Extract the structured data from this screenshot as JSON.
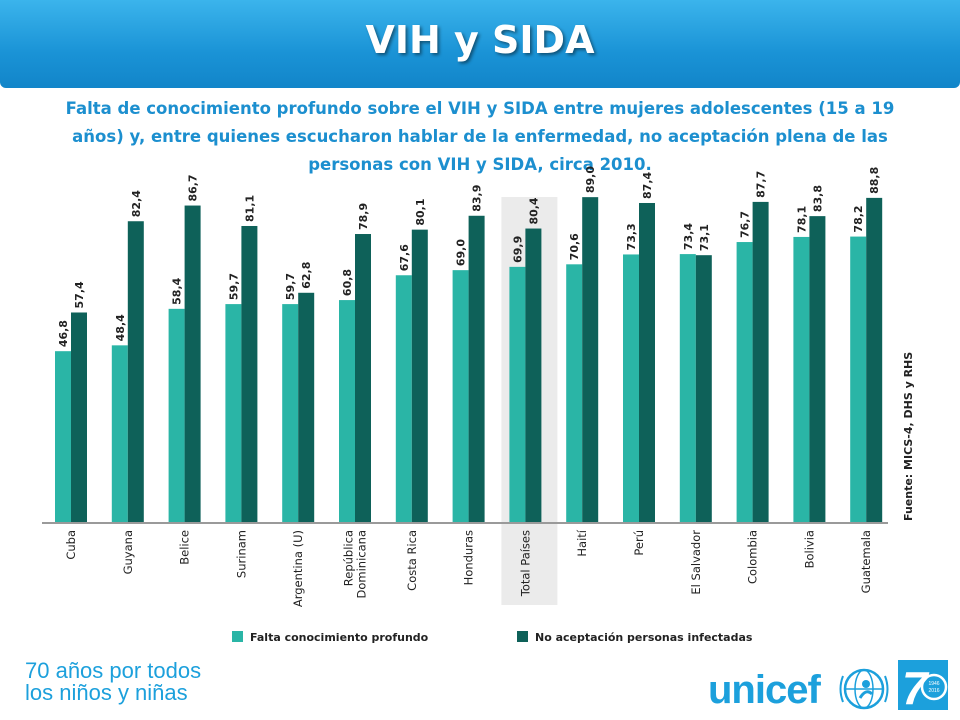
{
  "header": {
    "title": "VIH y SIDA",
    "subtitle": "Falta de conocimiento profundo sobre el VIH y SIDA entre mujeres adolescentes (15 a 19 años) y, entre quienes escucharon hablar de la enfermedad, no aceptación plena de las personas con VIH y SIDA, circa 2010."
  },
  "colors": {
    "banner": "#1a93d6",
    "series1": "#2ab5a6",
    "series2": "#0e6159",
    "highlight": "#ebebeb",
    "brand": "#1ca0dc"
  },
  "chart_data": {
    "type": "bar",
    "categories": [
      "Cuba",
      "Guyana",
      "Belice",
      "Surinam",
      "Argentina (U)",
      "República Dominicana",
      "Costa Rica",
      "Honduras",
      "Total Países",
      "Haití",
      "Perú",
      "El Salvador",
      "Colombia",
      "Bolivia",
      "Guatemala"
    ],
    "series": [
      {
        "name": "Falta conocimiento profundo",
        "values": [
          46.8,
          48.4,
          58.4,
          59.7,
          59.7,
          60.8,
          67.6,
          69.0,
          69.9,
          70.6,
          73.3,
          73.4,
          76.7,
          78.1,
          78.2
        ],
        "labels": [
          "46,8",
          "48,4",
          "58,4",
          "59,7",
          "59,7",
          "60,8",
          "67,6",
          "69,0",
          "69,9",
          "70,6",
          "73,3",
          "73,4",
          "76,7",
          "78,1",
          "78,2"
        ]
      },
      {
        "name": "No aceptación personas infectadas",
        "values": [
          57.4,
          82.4,
          86.7,
          81.1,
          62.8,
          78.9,
          80.1,
          83.9,
          80.4,
          89.0,
          87.4,
          73.1,
          87.7,
          83.8,
          88.8
        ],
        "labels": [
          "57,4",
          "82,4",
          "86,7",
          "81,1",
          "62,8",
          "78,9",
          "80,1",
          "83,9",
          "80,4",
          "89,0",
          "87,4",
          "73,1",
          "87,7",
          "83,8",
          "88,8"
        ]
      }
    ],
    "highlighted_category": "Total Países",
    "ylim": [
      0,
      100
    ],
    "grid": false,
    "legend_position": "bottom",
    "source_note": "Fuente: MICS-4, DHS y RHS"
  },
  "footer": {
    "tagline_line1": "70 años por todos",
    "tagline_line2": "los niños y niñas",
    "brand": "unicef",
    "badge_years": "1946 2016"
  }
}
